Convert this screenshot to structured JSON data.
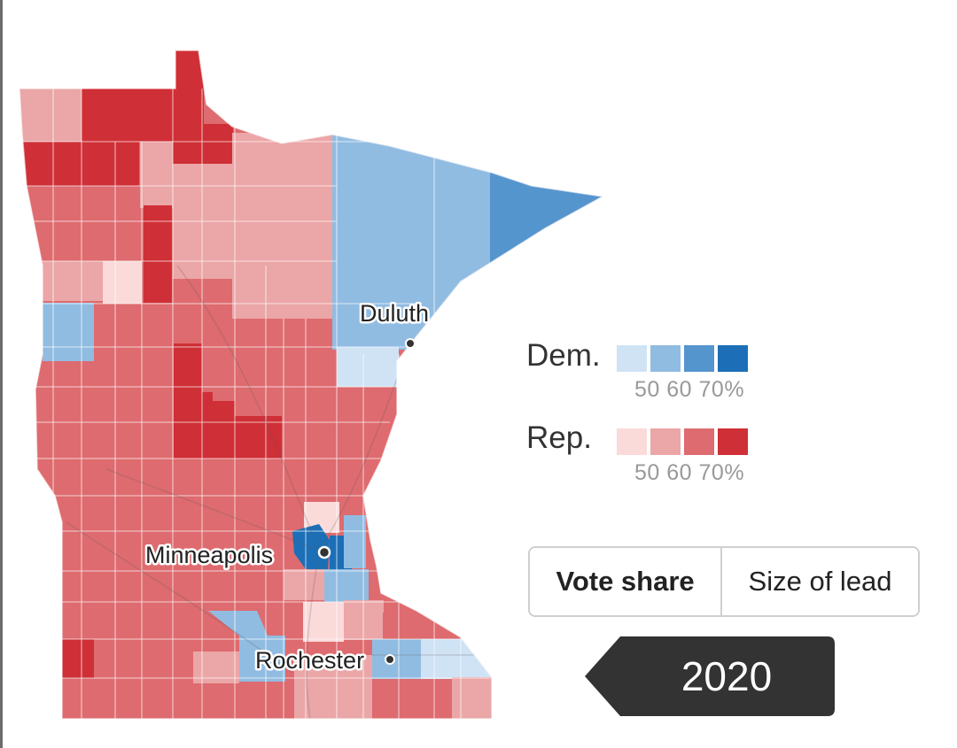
{
  "map": {
    "cities": [
      {
        "name": "Duluth",
        "marker": "city-dot-icon"
      },
      {
        "name": "Minneapolis",
        "marker": "city-dot-icon"
      },
      {
        "name": "Rochester",
        "marker": "city-dot-icon"
      }
    ]
  },
  "legend": {
    "dem": {
      "label": "Dem.",
      "ticks": "50 60 70%",
      "colors": [
        "#cfe3f5",
        "#91bce2",
        "#5595ce",
        "#1c6fb6"
      ]
    },
    "rep": {
      "label": "Rep.",
      "ticks": "50 60 70%",
      "colors": [
        "#fbdada",
        "#eba6a7",
        "#de6b6f",
        "#cf2f36"
      ]
    }
  },
  "toggle": {
    "options": [
      "Vote share",
      "Size of lead"
    ],
    "selected": "Vote share"
  },
  "year": "2020",
  "icons": {
    "year_tag": "arrow-left-tag-icon"
  }
}
